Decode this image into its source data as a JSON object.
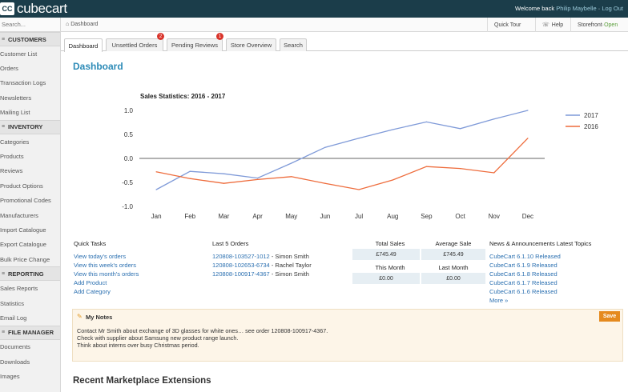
{
  "brand": {
    "badge": "CC",
    "name": "cubecart"
  },
  "header": {
    "welcome_prefix": "Welcome back ",
    "user": "Philip Maybelle",
    "separator": " · ",
    "logout": "Log Out"
  },
  "sidebar": {
    "search_placeholder": "Search...",
    "sections": [
      {
        "title": "CUSTOMERS",
        "items": [
          "Customer List",
          "Orders",
          "Transaction Logs",
          "Newsletters",
          "Mailing List"
        ]
      },
      {
        "title": "INVENTORY",
        "items": [
          "Categories",
          "Products",
          "Reviews",
          "Product Options",
          "Promotional Codes",
          "Manufacturers",
          "Import Catalogue",
          "Export Catalogue",
          "Bulk Price Change"
        ]
      },
      {
        "title": "REPORTING",
        "items": [
          "Sales Reports",
          "Statistics",
          "Email Log"
        ]
      },
      {
        "title": "FILE MANAGER",
        "items": [
          "Documents",
          "Downloads",
          "Images"
        ]
      }
    ]
  },
  "toolbar": {
    "breadcrumb": "Dashboard",
    "quick_tour": "Quick Tour",
    "help": "Help",
    "storefront": "Storefront",
    "storefront_status": "Open"
  },
  "tabs": [
    {
      "label": "Dashboard",
      "badge": ""
    },
    {
      "label": "Unsettled Orders",
      "badge": "2"
    },
    {
      "label": "Pending Reviews",
      "badge": "1"
    },
    {
      "label": "Store Overview",
      "badge": ""
    },
    {
      "label": "Search",
      "badge": ""
    }
  ],
  "page_title": "Dashboard",
  "chart_data": {
    "type": "line",
    "title": "Sales Statistics: 2016 - 2017",
    "categories": [
      "Jan",
      "Feb",
      "Mar",
      "Apr",
      "May",
      "Jun",
      "Jul",
      "Aug",
      "Sep",
      "Oct",
      "Nov",
      "Dec"
    ],
    "series": [
      {
        "name": "2017",
        "color": "#7f9ad8",
        "values": [
          -0.65,
          -0.27,
          -0.32,
          -0.41,
          -0.1,
          0.23,
          0.42,
          0.6,
          0.76,
          0.62,
          0.82,
          1.0
        ]
      },
      {
        "name": "2016",
        "color": "#ee6c3c",
        "values": [
          -0.28,
          -0.42,
          -0.52,
          -0.44,
          -0.38,
          -0.52,
          -0.65,
          -0.45,
          -0.17,
          -0.21,
          -0.3,
          0.42
        ]
      }
    ],
    "ylim": [
      -1.0,
      1.0
    ],
    "yticks": [
      "1.0",
      "0.5",
      "0.0",
      "-0.5",
      "-1.0"
    ],
    "grid": false,
    "legend": "top-right"
  },
  "quick_tasks": {
    "title": "Quick Tasks",
    "items": [
      "View today's orders",
      "View this week's orders",
      "View this month's orders",
      "Add Product",
      "Add Category"
    ]
  },
  "last_orders": {
    "title": "Last 5 Orders",
    "items": [
      {
        "id": "120808-103527-1012",
        "name": " - Simon Smith"
      },
      {
        "id": "120808-102653-6734",
        "name": " - Rachel Taylor"
      },
      {
        "id": "120808-100917-4367",
        "name": " - Simon Smith"
      }
    ]
  },
  "stats": {
    "total_sales_label": "Total Sales",
    "total_sales": "£745.49",
    "avg_sale_label": "Average Sale",
    "avg_sale": "£745.49",
    "this_month_label": "This Month",
    "this_month": "£0.00",
    "last_month_label": "Last Month",
    "last_month": "£0.00"
  },
  "news": {
    "title": "News & Announcements Latest Topics",
    "items": [
      "CubeCart 6.1.10 Released",
      "CubeCart 6.1.9 Released",
      "CubeCart 6.1.8 Released",
      "CubeCart 6.1.7 Released",
      "CubeCart 6.1.6 Released"
    ],
    "more": "More »"
  },
  "notes": {
    "title": "My Notes",
    "save": "Save",
    "content": "Contact Mr Smith about exchange of 3D glasses for white ones… see order 120808-100917-4367.\nCheck with supplier about Samsung new product range launch.\nThink about interns over busy Christmas period."
  },
  "recent_title": "Recent Marketplace Extensions"
}
